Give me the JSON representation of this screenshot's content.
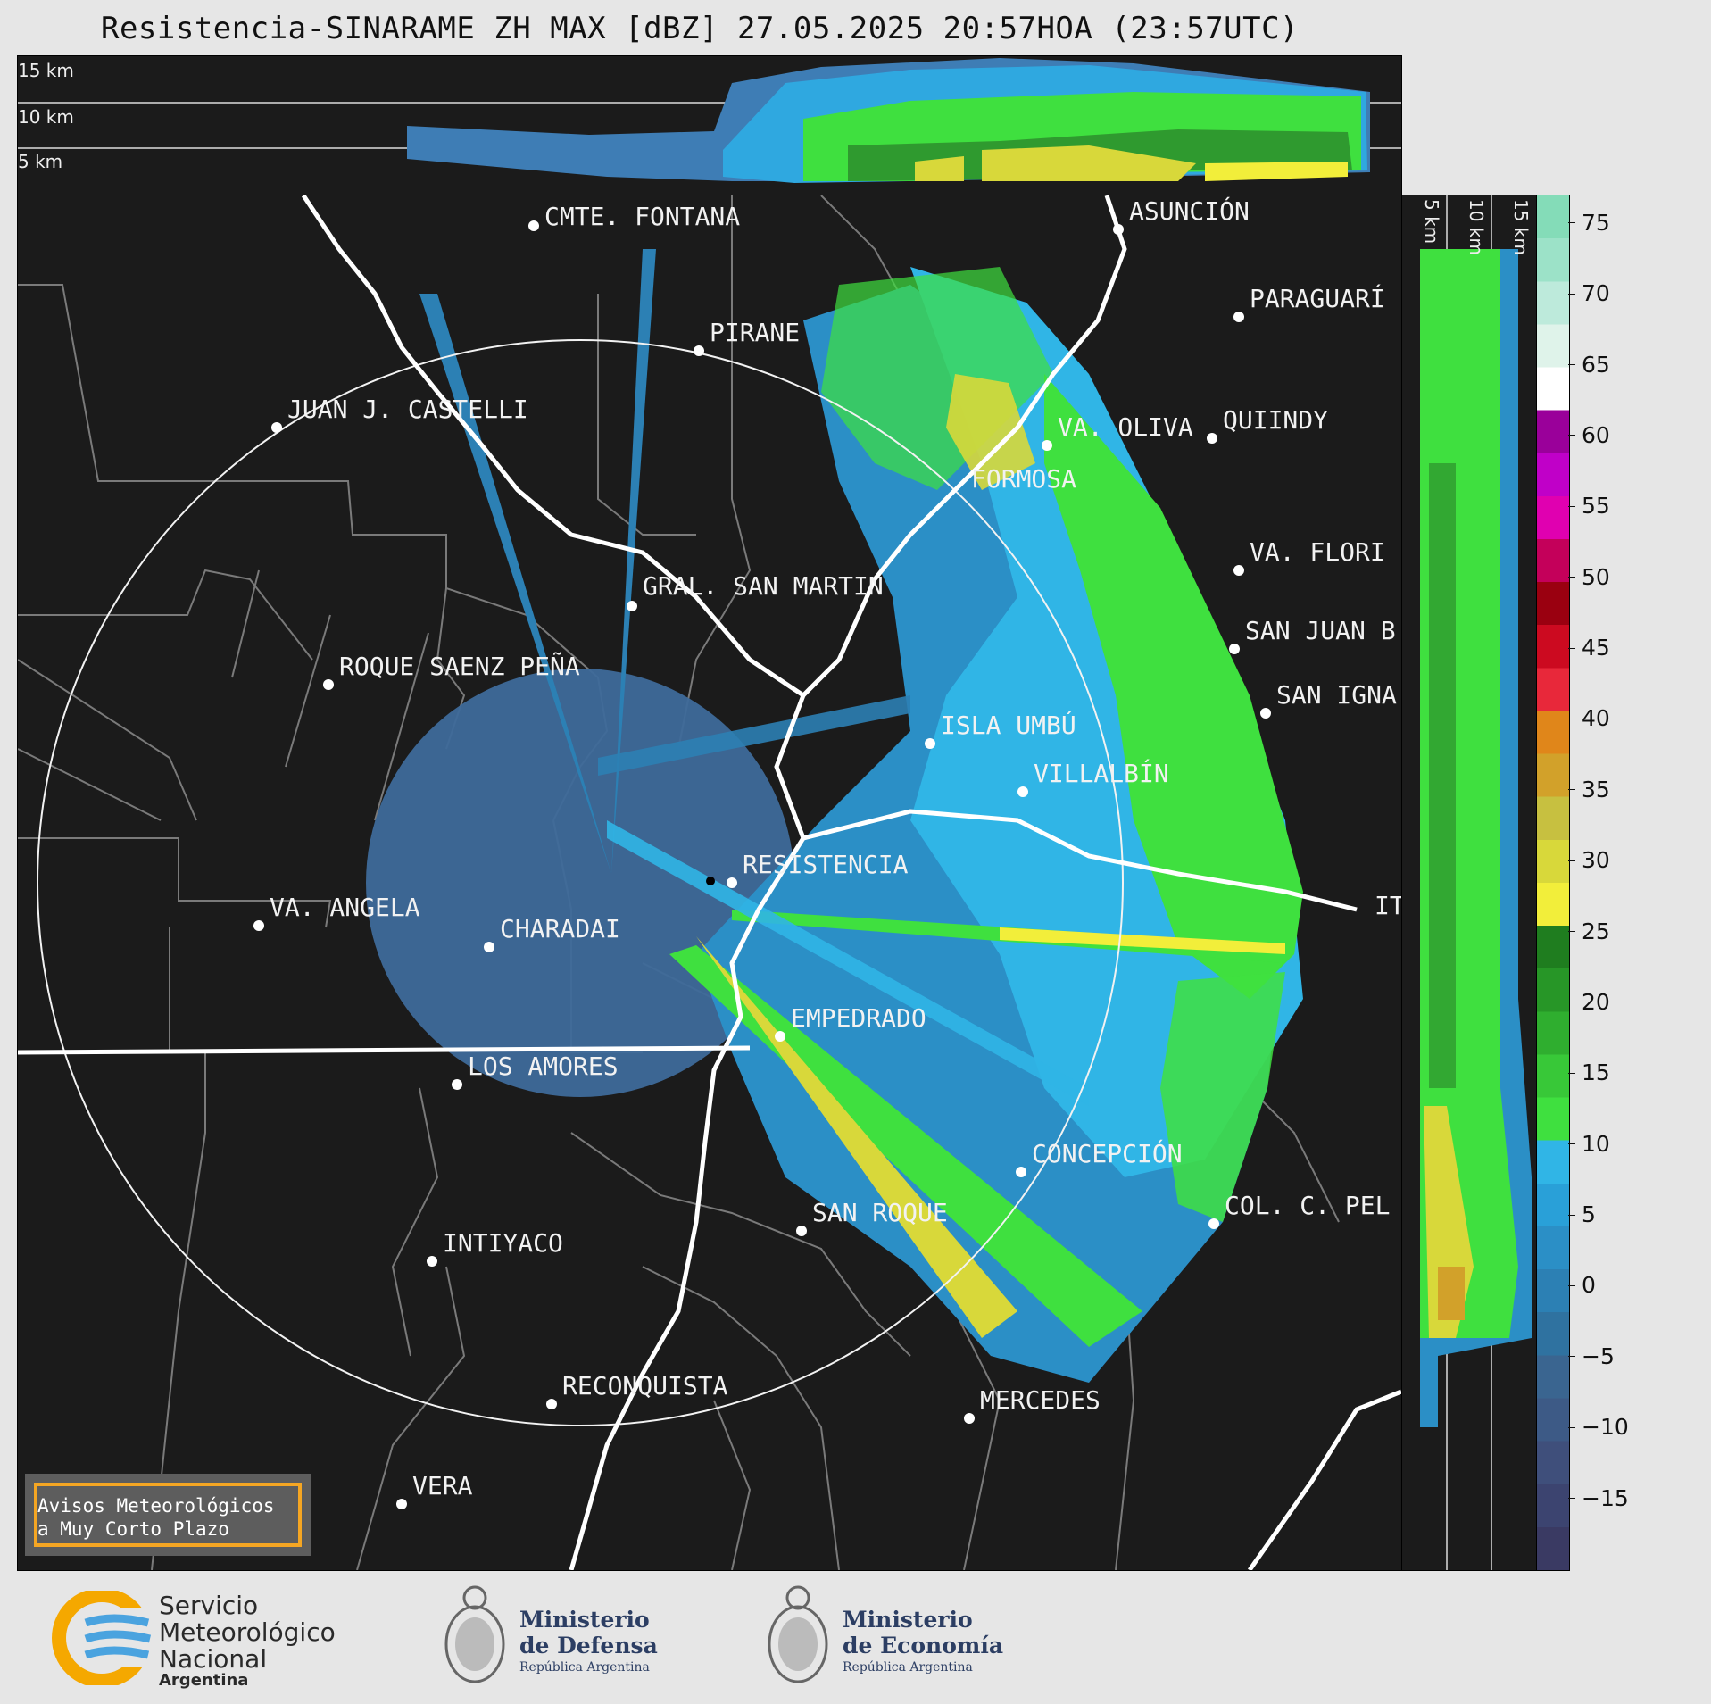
{
  "title": "Resistencia-SINARAME ZH MAX [dBZ] 27.05.2025 20:57HOA (23:57UTC)",
  "top_panel": {
    "height_labels": [
      "15 km",
      "10 km",
      "5 km"
    ]
  },
  "side_panel": {
    "height_labels": [
      "5 km",
      "10 km",
      "15 km"
    ]
  },
  "colorbar": {
    "ticks": [
      "75",
      "70",
      "65",
      "60",
      "55",
      "50",
      "45",
      "40",
      "35",
      "30",
      "25",
      "20",
      "15",
      "10",
      "5",
      "0",
      "−5",
      "−10",
      "−15"
    ],
    "range_dbz": [
      -20,
      77
    ],
    "colors": [
      "#3a3a63",
      "#3c4470",
      "#3f4f7b",
      "#3d5a86",
      "#3a6590",
      "#2f72a0",
      "#2c80b4",
      "#2b8fc6",
      "#29a0d8",
      "#30b5e6",
      "#3fe03f",
      "#38c838",
      "#2fae2f",
      "#279627",
      "#1f7d1f",
      "#f2ee3a",
      "#d8d83a",
      "#c7c040",
      "#d2a12a",
      "#e0861a",
      "#e8283a",
      "#cc0a20",
      "#9a0010",
      "#c4005a",
      "#e000b0",
      "#c000c8",
      "#9a009a",
      "#ffffff",
      "#dff3ea",
      "#bdeadb",
      "#9ce2c8",
      "#84dcb8"
    ]
  },
  "cities": [
    {
      "name": "CMTE. FONTANA"
    },
    {
      "name": "ASUNCIÓN"
    },
    {
      "name": "PARAGUARÍ"
    },
    {
      "name": "PIRANE"
    },
    {
      "name": "JUAN J. CASTELLI"
    },
    {
      "name": "VA. OLIVA"
    },
    {
      "name": "QUIINDY"
    },
    {
      "name": "FORMOSA"
    },
    {
      "name": "VA. FLORI"
    },
    {
      "name": "GRAL. SAN MARTIN"
    },
    {
      "name": "SAN JUAN B"
    },
    {
      "name": "ROQUE SAENZ PEÑA"
    },
    {
      "name": "SAN IGNA"
    },
    {
      "name": "ISLA UMBÚ"
    },
    {
      "name": "VILLALBÍN"
    },
    {
      "name": "RESISTENCIA"
    },
    {
      "name": "IT"
    },
    {
      "name": "VA. ANGELA"
    },
    {
      "name": "CHARADAI"
    },
    {
      "name": "EMPEDRADO"
    },
    {
      "name": "LOS AMORES"
    },
    {
      "name": "CONCEPCIÓN"
    },
    {
      "name": "COL. C. PEL"
    },
    {
      "name": "SAN ROQUE"
    },
    {
      "name": "INTIYACO"
    },
    {
      "name": "RECONQUISTA"
    },
    {
      "name": "MERCEDES"
    },
    {
      "name": "VERA"
    }
  ],
  "notice": {
    "line1": "Avisos Meteorológicos",
    "line2": "a Muy Corto Plazo"
  },
  "logos": {
    "smn": {
      "line1": "Servicio",
      "line2": "Meteorológico",
      "line3": "Nacional",
      "line4": "Argentina",
      "colors": [
        "#f5a800",
        "#4aa3df"
      ]
    },
    "defensa": {
      "line1": "Ministerio",
      "line2": "de Defensa",
      "line3": "República Argentina"
    },
    "economia": {
      "line1": "Ministerio",
      "line2": "de Economía",
      "line3": "República Argentina"
    }
  }
}
